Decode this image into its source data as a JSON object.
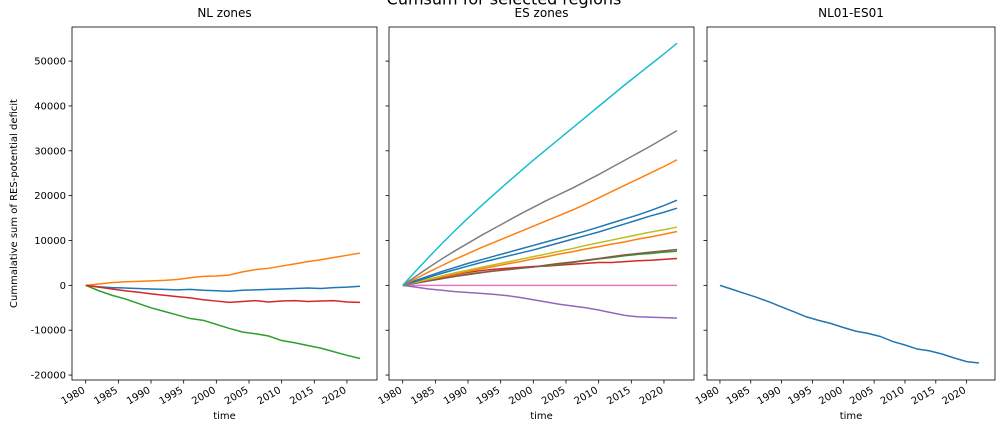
{
  "title": "Cumsum for selected regions",
  "chart_data": [
    {
      "type": "line",
      "title": "NL zones",
      "xlabel": "time",
      "ylabel": "Cummalative sum of RES-potential deficit",
      "x": [
        1980,
        1982,
        1984,
        1986,
        1988,
        1990,
        1992,
        1994,
        1996,
        1998,
        2000,
        2002,
        2004,
        2006,
        2008,
        2010,
        2012,
        2014,
        2016,
        2018,
        2020,
        2022
      ],
      "xlim": [
        1977.9,
        2024.6
      ],
      "xticks": [
        1980,
        1985,
        1990,
        1995,
        2000,
        2005,
        2010,
        2015,
        2020
      ],
      "ylim": [
        -21100,
        57600
      ],
      "yticks": [
        -20000,
        -10000,
        0,
        10000,
        20000,
        30000,
        40000,
        50000
      ],
      "show_ytick_labels": true,
      "series": [
        {
          "color": "#1f77b4",
          "values": [
            0,
            -300,
            -500,
            -600,
            -700,
            -800,
            -900,
            -1000,
            -900,
            -1100,
            -1200,
            -1300,
            -1100,
            -1000,
            -900,
            -800,
            -700,
            -600,
            -700,
            -500,
            -400,
            -200
          ]
        },
        {
          "color": "#ff7f0e",
          "values": [
            0,
            300,
            600,
            800,
            900,
            1000,
            1100,
            1300,
            1700,
            2000,
            2100,
            2300,
            3000,
            3500,
            3800,
            4300,
            4800,
            5300,
            5700,
            6200,
            6700,
            7200
          ]
        },
        {
          "color": "#2ca02c",
          "values": [
            0,
            -1200,
            -2200,
            -3000,
            -4000,
            -5000,
            -5800,
            -6600,
            -7400,
            -7800,
            -8700,
            -9600,
            -10400,
            -10800,
            -11300,
            -12300,
            -12800,
            -13400,
            -14000,
            -14800,
            -15600,
            -16300
          ]
        },
        {
          "color": "#d62728",
          "values": [
            0,
            -400,
            -800,
            -1200,
            -1500,
            -1900,
            -2200,
            -2500,
            -2800,
            -3200,
            -3500,
            -3800,
            -3600,
            -3400,
            -3700,
            -3500,
            -3400,
            -3600,
            -3500,
            -3400,
            -3700,
            -3800
          ]
        }
      ]
    },
    {
      "type": "line",
      "title": "ES zones",
      "xlabel": "time",
      "x": [
        1980,
        1982,
        1984,
        1986,
        1988,
        1990,
        1992,
        1994,
        1996,
        1998,
        2000,
        2002,
        2004,
        2006,
        2008,
        2010,
        2012,
        2014,
        2016,
        2018,
        2020,
        2022
      ],
      "xlim": [
        1977.9,
        2024.6
      ],
      "xticks": [
        1980,
        1985,
        1990,
        1995,
        2000,
        2005,
        2010,
        2015,
        2020
      ],
      "ylim": [
        -21100,
        57600
      ],
      "yticks": [
        -20000,
        -10000,
        0,
        10000,
        20000,
        30000,
        40000,
        50000
      ],
      "show_ytick_labels": false,
      "series": [
        {
          "color": "#e377c2",
          "values": [
            0,
            0,
            0,
            0,
            0,
            0,
            0,
            0,
            0,
            0,
            0,
            0,
            0,
            0,
            0,
            0,
            0,
            0,
            0,
            0,
            0,
            0
          ]
        },
        {
          "color": "#9467bd",
          "values": [
            0,
            -400,
            -800,
            -1100,
            -1400,
            -1600,
            -1800,
            -2000,
            -2300,
            -2700,
            -3200,
            -3700,
            -4200,
            -4600,
            -5000,
            -5500,
            -6100,
            -6700,
            -7000,
            -7100,
            -7200,
            -7300
          ]
        },
        {
          "color": "#d62728",
          "values": [
            0,
            600,
            1200,
            1800,
            2400,
            2900,
            3300,
            3600,
            3800,
            4000,
            4200,
            4300,
            4500,
            4700,
            4900,
            5100,
            5100,
            5300,
            5500,
            5600,
            5800,
            6000
          ]
        },
        {
          "color": "#2ca02c",
          "values": [
            0,
            500,
            1000,
            1500,
            2000,
            2500,
            2900,
            3200,
            3500,
            3800,
            4100,
            4400,
            4700,
            5100,
            5500,
            5900,
            6200,
            6600,
            6900,
            7100,
            7400,
            7600
          ]
        },
        {
          "color": "#8c564b",
          "values": [
            0,
            500,
            1000,
            1500,
            2000,
            2400,
            2800,
            3200,
            3500,
            3800,
            4100,
            4500,
            4900,
            5200,
            5600,
            6000,
            6400,
            6800,
            7100,
            7400,
            7700,
            8000
          ]
        },
        {
          "color": "#ff7f0e",
          "values": [
            0,
            700,
            1300,
            1900,
            2500,
            3100,
            3700,
            4200,
            4800,
            5300,
            5900,
            6400,
            7000,
            7500,
            8100,
            8600,
            9200,
            9700,
            10300,
            10800,
            11400,
            12000
          ]
        },
        {
          "color": "#bcbd22",
          "values": [
            0,
            700,
            1400,
            2100,
            2800,
            3400,
            4000,
            4600,
            5200,
            5800,
            6400,
            7000,
            7600,
            8200,
            8900,
            9500,
            10100,
            10700,
            11300,
            11900,
            12400,
            13000
          ]
        },
        {
          "color": "#1f77b4",
          "values": [
            0,
            900,
            1800,
            2700,
            3500,
            4300,
            5100,
            5800,
            6500,
            7200,
            7900,
            8700,
            9500,
            10300,
            11100,
            11900,
            12800,
            13700,
            14600,
            15500,
            16300,
            17200
          ]
        },
        {
          "color": "#1f77b4",
          "values": [
            0,
            1100,
            2100,
            3100,
            4000,
            4900,
            5700,
            6500,
            7300,
            8100,
            8900,
            9700,
            10500,
            11300,
            12100,
            13000,
            13900,
            14800,
            15700,
            16700,
            17800,
            19000
          ]
        },
        {
          "color": "#ff7f0e",
          "values": [
            0,
            1500,
            3000,
            4400,
            5800,
            7100,
            8400,
            9600,
            10800,
            12000,
            13200,
            14400,
            15600,
            16800,
            18100,
            19500,
            20900,
            22300,
            23700,
            25100,
            26500,
            28000
          ]
        },
        {
          "color": "#7f7f7f",
          "values": [
            0,
            2000,
            4000,
            5900,
            7700,
            9400,
            11100,
            12700,
            14300,
            15900,
            17400,
            18900,
            20300,
            21700,
            23200,
            24700,
            26300,
            27900,
            29500,
            31100,
            32800,
            34500
          ]
        },
        {
          "color": "#17becf",
          "values": [
            0,
            3200,
            6300,
            9300,
            12200,
            15000,
            17700,
            20300,
            22900,
            25400,
            27900,
            30300,
            32700,
            35100,
            37500,
            39900,
            42300,
            44700,
            47000,
            49300,
            51600,
            54000
          ]
        }
      ]
    },
    {
      "type": "line",
      "title": "NL01-ES01",
      "xlabel": "time",
      "x": [
        1980,
        1982,
        1984,
        1986,
        1988,
        1990,
        1992,
        1994,
        1996,
        1998,
        2000,
        2002,
        2004,
        2006,
        2008,
        2010,
        2012,
        2014,
        2016,
        2018,
        2020,
        2022
      ],
      "xlim": [
        1977.9,
        2024.6
      ],
      "xticks": [
        1980,
        1985,
        1990,
        1995,
        2000,
        2005,
        2010,
        2015,
        2020
      ],
      "ylim": [
        -21100,
        57600
      ],
      "yticks": [
        -20000,
        -10000,
        0,
        10000,
        20000,
        30000,
        40000,
        50000
      ],
      "show_ytick_labels": false,
      "series": [
        {
          "color": "#1f77b4",
          "values": [
            0,
            -900,
            -1800,
            -2700,
            -3700,
            -4800,
            -5900,
            -7000,
            -7800,
            -8500,
            -9400,
            -10200,
            -10700,
            -11400,
            -12500,
            -13300,
            -14200,
            -14600,
            -15300,
            -16200,
            -17000,
            -17300
          ]
        }
      ]
    }
  ]
}
